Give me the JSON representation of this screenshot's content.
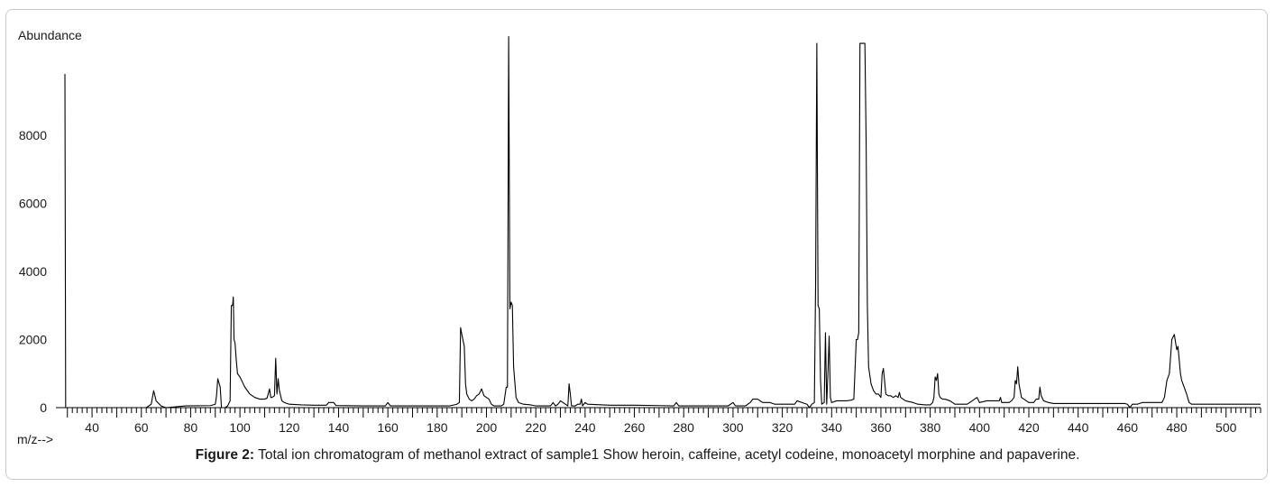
{
  "chart_data": {
    "type": "line",
    "ylabel": "Abundance",
    "xlabel": "m/z-->",
    "xlim": [
      29,
      514
    ],
    "ylim": [
      0,
      10500
    ],
    "x_ticks": [
      40,
      60,
      80,
      100,
      120,
      140,
      160,
      180,
      200,
      220,
      240,
      260,
      280,
      300,
      320,
      340,
      360,
      380,
      400,
      420,
      440,
      460,
      480,
      500
    ],
    "y_ticks": [
      0,
      2000,
      4000,
      6000,
      8000
    ],
    "grid": false,
    "series": [
      {
        "color": "#000000",
        "points": [
          [
            29,
            9800
          ],
          [
            29.3,
            0
          ],
          [
            30,
            0
          ],
          [
            50,
            0
          ],
          [
            62,
            0
          ],
          [
            64,
            100
          ],
          [
            65,
            500
          ],
          [
            66,
            200
          ],
          [
            68,
            50
          ],
          [
            70,
            0
          ],
          [
            78,
            50
          ],
          [
            88,
            60
          ],
          [
            89,
            80
          ],
          [
            90,
            100
          ],
          [
            90.5,
            350
          ],
          [
            91,
            850
          ],
          [
            92,
            600
          ],
          [
            92.5,
            0
          ],
          [
            94,
            0
          ],
          [
            95,
            50
          ],
          [
            96,
            200
          ],
          [
            96.5,
            3000
          ],
          [
            97,
            3000
          ],
          [
            97.3,
            3250
          ],
          [
            97.6,
            2000
          ],
          [
            98,
            1900
          ],
          [
            98.5,
            1400
          ],
          [
            99,
            1000
          ],
          [
            100,
            900
          ],
          [
            101,
            750
          ],
          [
            102,
            600
          ],
          [
            103,
            500
          ],
          [
            104,
            400
          ],
          [
            105,
            350
          ],
          [
            106,
            300
          ],
          [
            108,
            250
          ],
          [
            110,
            250
          ],
          [
            111,
            280
          ],
          [
            112,
            550
          ],
          [
            112.5,
            300
          ],
          [
            113,
            300
          ],
          [
            114,
            350
          ],
          [
            114.5,
            1450
          ],
          [
            115,
            400
          ],
          [
            115.5,
            850
          ],
          [
            116,
            500
          ],
          [
            117,
            200
          ],
          [
            118,
            150
          ],
          [
            120,
            100
          ],
          [
            125,
            80
          ],
          [
            130,
            70
          ],
          [
            135,
            70
          ],
          [
            136,
            150
          ],
          [
            138,
            150
          ],
          [
            139,
            60
          ],
          [
            150,
            50
          ],
          [
            159,
            50
          ],
          [
            160,
            150
          ],
          [
            161,
            50
          ],
          [
            170,
            50
          ],
          [
            185,
            50
          ],
          [
            188,
            100
          ],
          [
            189,
            150
          ],
          [
            189.5,
            2350
          ],
          [
            190,
            2150
          ],
          [
            191,
            1800
          ],
          [
            191.5,
            700
          ],
          [
            192,
            400
          ],
          [
            193,
            250
          ],
          [
            194,
            200
          ],
          [
            195,
            250
          ],
          [
            196,
            350
          ],
          [
            197,
            400
          ],
          [
            198,
            550
          ],
          [
            199,
            350
          ],
          [
            200,
            300
          ],
          [
            201,
            250
          ],
          [
            202,
            100
          ],
          [
            203,
            50
          ],
          [
            206,
            50
          ],
          [
            207,
            100
          ],
          [
            208,
            600
          ],
          [
            208.5,
            600
          ],
          [
            209,
            10900
          ],
          [
            209.5,
            2900
          ],
          [
            210,
            3100
          ],
          [
            210.5,
            3000
          ],
          [
            211,
            1200
          ],
          [
            212,
            300
          ],
          [
            213,
            150
          ],
          [
            215,
            100
          ],
          [
            218,
            80
          ],
          [
            220,
            50
          ],
          [
            226,
            50
          ],
          [
            227,
            150
          ],
          [
            228,
            50
          ],
          [
            229,
            100
          ],
          [
            230,
            200
          ],
          [
            231,
            150
          ],
          [
            232,
            100
          ],
          [
            233,
            50
          ],
          [
            233.5,
            700
          ],
          [
            234,
            400
          ],
          [
            234.5,
            50
          ],
          [
            236,
            50
          ],
          [
            237,
            100
          ],
          [
            238,
            100
          ],
          [
            238.5,
            250
          ],
          [
            239,
            50
          ],
          [
            240,
            150
          ],
          [
            241,
            100
          ],
          [
            250,
            70
          ],
          [
            260,
            70
          ],
          [
            270,
            60
          ],
          [
            276,
            50
          ],
          [
            277,
            150
          ],
          [
            278,
            50
          ],
          [
            290,
            50
          ],
          [
            298,
            50
          ],
          [
            300,
            150
          ],
          [
            301,
            50
          ],
          [
            305,
            50
          ],
          [
            306,
            100
          ],
          [
            307,
            150
          ],
          [
            308,
            250
          ],
          [
            310,
            250
          ],
          [
            312,
            150
          ],
          [
            315,
            150
          ],
          [
            317,
            100
          ],
          [
            320,
            100
          ],
          [
            325,
            100
          ],
          [
            326,
            200
          ],
          [
            328,
            150
          ],
          [
            330,
            100
          ],
          [
            331,
            0
          ],
          [
            332,
            100
          ],
          [
            333,
            150
          ],
          [
            333.5,
            3600
          ],
          [
            334,
            10700
          ],
          [
            334.5,
            3000
          ],
          [
            335,
            2900
          ],
          [
            335.5,
            800
          ],
          [
            336,
            100
          ],
          [
            337,
            150
          ],
          [
            337.5,
            2200
          ],
          [
            338,
            100
          ],
          [
            338.5,
            1000
          ],
          [
            339,
            2100
          ],
          [
            339.5,
            300
          ],
          [
            340,
            150
          ],
          [
            342,
            200
          ],
          [
            346,
            200
          ],
          [
            348,
            220
          ],
          [
            349,
            250
          ],
          [
            350,
            2000
          ],
          [
            350.5,
            2000
          ],
          [
            351,
            2200
          ],
          [
            351.5,
            10700
          ],
          [
            352,
            10700
          ],
          [
            352.5,
            10700
          ],
          [
            353,
            10700
          ],
          [
            353.5,
            10700
          ],
          [
            354,
            7800
          ],
          [
            354.5,
            3000
          ],
          [
            355,
            1200
          ],
          [
            356,
            700
          ],
          [
            357,
            500
          ],
          [
            358,
            400
          ],
          [
            359,
            400
          ],
          [
            360,
            300
          ],
          [
            360.5,
            1000
          ],
          [
            361,
            1150
          ],
          [
            362,
            400
          ],
          [
            363,
            350
          ],
          [
            364,
            350
          ],
          [
            365,
            300
          ],
          [
            366,
            350
          ],
          [
            367,
            300
          ],
          [
            367.5,
            450
          ],
          [
            368,
            300
          ],
          [
            369,
            250
          ],
          [
            370,
            200
          ],
          [
            373,
            150
          ],
          [
            375,
            100
          ],
          [
            378,
            80
          ],
          [
            380,
            80
          ],
          [
            381,
            150
          ],
          [
            381.5,
            300
          ],
          [
            382,
            900
          ],
          [
            382.5,
            800
          ],
          [
            383,
            1000
          ],
          [
            383.5,
            400
          ],
          [
            384,
            300
          ],
          [
            385,
            250
          ],
          [
            386,
            250
          ],
          [
            388,
            200
          ],
          [
            390,
            100
          ],
          [
            395,
            100
          ],
          [
            398,
            250
          ],
          [
            399,
            300
          ],
          [
            400,
            150
          ],
          [
            403,
            200
          ],
          [
            406,
            200
          ],
          [
            408,
            200
          ],
          [
            408.5,
            300
          ],
          [
            409,
            150
          ],
          [
            412,
            150
          ],
          [
            413,
            200
          ],
          [
            414,
            300
          ],
          [
            414.5,
            800
          ],
          [
            415,
            700
          ],
          [
            415.5,
            1200
          ],
          [
            416,
            700
          ],
          [
            416.5,
            500
          ],
          [
            417,
            300
          ],
          [
            418,
            250
          ],
          [
            419,
            200
          ],
          [
            420,
            150
          ],
          [
            422,
            150
          ],
          [
            423,
            250
          ],
          [
            424,
            250
          ],
          [
            424.5,
            600
          ],
          [
            425,
            350
          ],
          [
            426,
            200
          ],
          [
            428,
            150
          ],
          [
            430,
            120
          ],
          [
            440,
            120
          ],
          [
            450,
            120
          ],
          [
            459,
            120
          ],
          [
            460,
            100
          ],
          [
            461,
            0
          ],
          [
            462,
            100
          ],
          [
            464,
            100
          ],
          [
            466,
            150
          ],
          [
            468,
            150
          ],
          [
            470,
            150
          ],
          [
            472,
            150
          ],
          [
            474,
            150
          ],
          [
            475,
            300
          ],
          [
            476,
            800
          ],
          [
            477,
            1000
          ],
          [
            478,
            2000
          ],
          [
            479,
            2150
          ],
          [
            480,
            1700
          ],
          [
            480.5,
            1800
          ],
          [
            481,
            1400
          ],
          [
            481.5,
            1000
          ],
          [
            482,
            800
          ],
          [
            483,
            600
          ],
          [
            484,
            400
          ],
          [
            485,
            150
          ],
          [
            486,
            100
          ],
          [
            495,
            100
          ],
          [
            505,
            100
          ],
          [
            514,
            100
          ]
        ]
      }
    ]
  },
  "caption": {
    "label": "Figure 2:",
    "text": " Total ion chromatogram of methanol extract of sample1 Show heroin, caffeine, acetyl codeine, monoacetyl morphine and papaverine."
  }
}
